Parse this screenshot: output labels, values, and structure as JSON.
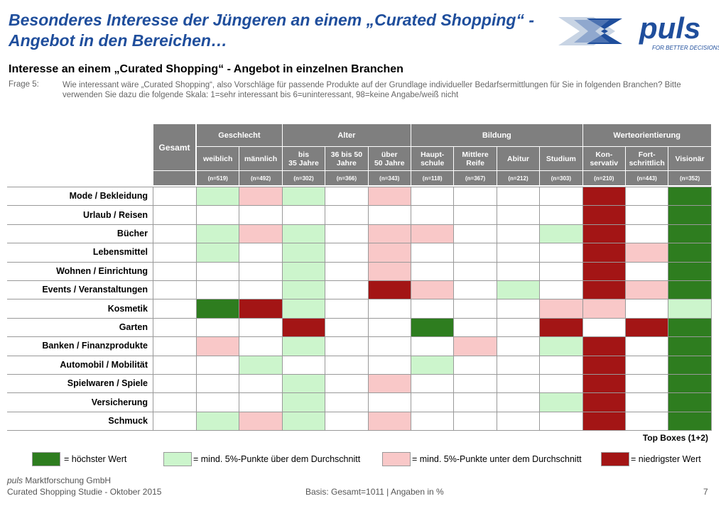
{
  "header": {
    "title": "Besonderes Interesse der Jüngeren an einem „Curated Shopping“ - Angebot in den Bereichen…",
    "logo_text": "puls",
    "logo_tagline": "FOR BETTER DECISIONS"
  },
  "subtitle": "Interesse an einem „Curated Shopping“ - Angebot in einzelnen Branchen",
  "question": {
    "label": "Frage 5:",
    "text": "Wie interessant wäre „Curated Shopping“, also Vorschläge für passende Produkte auf der Grundlage individueller Bedarfsermittlungen für Sie in folgenden Branchen? Bitte verwenden Sie dazu die folgende Skala: 1=sehr interessant bis 6=uninteressant, 98=keine Angabe/weiß nicht"
  },
  "colors": {
    "H": "#2e7d1f",
    "A": "#ccf5cc",
    "B": "#f9c8c8",
    "L": "#a31515",
    "N": "#ffffff",
    "header_bg": "#7f7f7f",
    "title": "#1f4e9c"
  },
  "chart_data": {
    "type": "table",
    "gesamt_label": "Gesamt",
    "groups": [
      {
        "name": "Geschlecht",
        "span": 2
      },
      {
        "name": "Alter",
        "span": 3
      },
      {
        "name": "Bildung",
        "span": 4
      },
      {
        "name": "Werteorientierung",
        "span": 3
      }
    ],
    "columns": [
      {
        "label": "weiblich",
        "n": "(n=519)"
      },
      {
        "label": "männlich",
        "n": "(n=492)"
      },
      {
        "label": "bis\n35 Jahre",
        "n": "(n=302)"
      },
      {
        "label": "36 bis 50\nJahre",
        "n": "(n=366)"
      },
      {
        "label": "über\n50 Jahre",
        "n": "(n=343)"
      },
      {
        "label": "Haupt-\nschule",
        "n": "(n=118)"
      },
      {
        "label": "Mittlere\nReife",
        "n": "(n=367)"
      },
      {
        "label": "Abitur",
        "n": "(n=212)"
      },
      {
        "label": "Studium",
        "n": "(n=303)"
      },
      {
        "label": "Kon-\nservativ",
        "n": "(n=210)"
      },
      {
        "label": "Fort-\nschrittlich",
        "n": "(n=443)"
      },
      {
        "label": "Visionär",
        "n": "(n=352)"
      }
    ],
    "rows": [
      {
        "label": "Mode / Bekleidung",
        "cells": [
          "N",
          "A",
          "B",
          "A",
          "N",
          "B",
          "N",
          "N",
          "N",
          "N",
          "L",
          "N",
          "H"
        ]
      },
      {
        "label": "Urlaub / Reisen",
        "cells": [
          "N",
          "N",
          "N",
          "N",
          "N",
          "N",
          "N",
          "N",
          "N",
          "N",
          "L",
          "N",
          "H"
        ]
      },
      {
        "label": "Bücher",
        "cells": [
          "N",
          "A",
          "B",
          "A",
          "N",
          "B",
          "B",
          "N",
          "N",
          "A",
          "L",
          "N",
          "H"
        ]
      },
      {
        "label": "Lebensmittel",
        "cells": [
          "N",
          "A",
          "N",
          "A",
          "N",
          "B",
          "N",
          "N",
          "N",
          "N",
          "L",
          "B",
          "H"
        ]
      },
      {
        "label": "Wohnen / Einrichtung",
        "cells": [
          "N",
          "N",
          "N",
          "A",
          "N",
          "B",
          "N",
          "N",
          "N",
          "N",
          "L",
          "N",
          "H"
        ]
      },
      {
        "label": "Events / Veranstaltungen",
        "cells": [
          "N",
          "N",
          "N",
          "A",
          "N",
          "L",
          "B",
          "N",
          "A",
          "N",
          "L",
          "B",
          "H"
        ]
      },
      {
        "label": "Kosmetik",
        "cells": [
          "N",
          "H",
          "L",
          "A",
          "N",
          "N",
          "N",
          "N",
          "N",
          "B",
          "B",
          "N",
          "A"
        ]
      },
      {
        "label": "Garten",
        "cells": [
          "N",
          "N",
          "N",
          "L",
          "N",
          "N",
          "H",
          "N",
          "N",
          "L",
          "N",
          "L",
          "H"
        ]
      },
      {
        "label": "Banken / Finanzprodukte",
        "cells": [
          "N",
          "B",
          "N",
          "A",
          "N",
          "N",
          "N",
          "B",
          "N",
          "A",
          "L",
          "N",
          "H"
        ]
      },
      {
        "label": "Automobil / Mobilität",
        "cells": [
          "N",
          "N",
          "A",
          "N",
          "N",
          "N",
          "A",
          "N",
          "N",
          "N",
          "L",
          "N",
          "H"
        ]
      },
      {
        "label": "Spielwaren / Spiele",
        "cells": [
          "N",
          "N",
          "N",
          "A",
          "N",
          "B",
          "N",
          "N",
          "N",
          "N",
          "L",
          "N",
          "H"
        ]
      },
      {
        "label": "Versicherung",
        "cells": [
          "N",
          "N",
          "N",
          "A",
          "N",
          "N",
          "N",
          "N",
          "N",
          "A",
          "L",
          "N",
          "H"
        ]
      },
      {
        "label": "Schmuck",
        "cells": [
          "N",
          "A",
          "B",
          "A",
          "N",
          "B",
          "N",
          "N",
          "N",
          "N",
          "L",
          "N",
          "H"
        ]
      }
    ]
  },
  "topboxes_label": "Top Boxes (1+2)",
  "legend": [
    {
      "key": "H",
      "label": "= höchster Wert"
    },
    {
      "key": "A",
      "label": "= mind. 5%-Punkte über dem Durchschnitt"
    },
    {
      "key": "B",
      "label": "= mind. 5%-Punkte unter dem Durchschnitt"
    },
    {
      "key": "L",
      "label": "= niedrigster Wert"
    }
  ],
  "footer": {
    "company_brand": "puls",
    "company_rest": " Marktforschung GmbH",
    "study": "Curated Shopping Studie - Oktober 2015",
    "basis": "Basis: Gesamt=1011 | Angaben in %",
    "page": "7"
  }
}
